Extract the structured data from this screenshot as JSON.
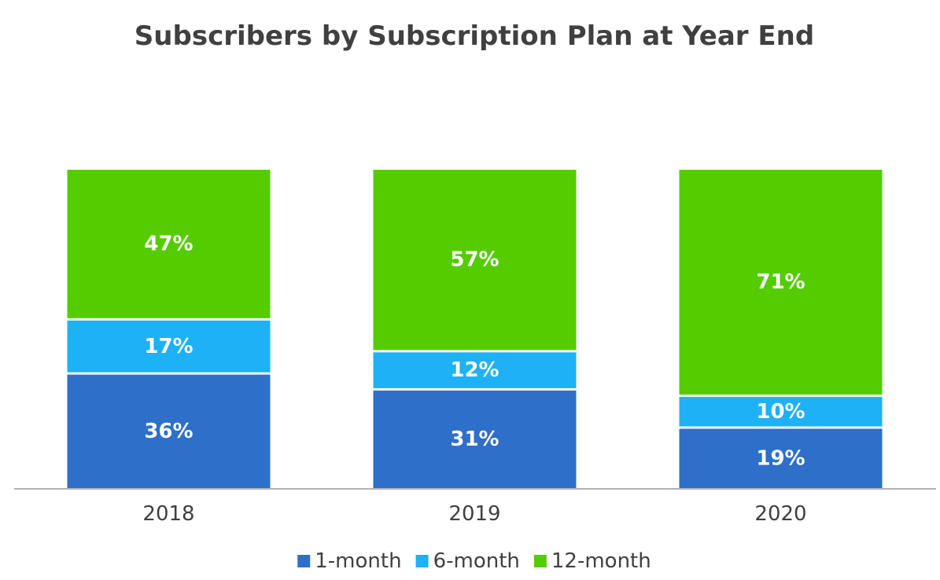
{
  "chart_data": {
    "type": "bar",
    "stacked": true,
    "normalized_percent": true,
    "title": "Subscribers by Subscription Plan at Year End",
    "xlabel": "",
    "ylabel": "",
    "ylim": [
      0,
      100
    ],
    "grid": false,
    "legend_position": "bottom",
    "categories": [
      "2018",
      "2019",
      "2020"
    ],
    "series": [
      {
        "name": "1-month",
        "color": "#2e6fca",
        "values": [
          36,
          31,
          19
        ],
        "labels": [
          "36%",
          "31%",
          "19%"
        ]
      },
      {
        "name": "6-month",
        "color": "#1eb1f5",
        "values": [
          17,
          12,
          10
        ],
        "labels": [
          "17%",
          "12%",
          "10%"
        ]
      },
      {
        "name": "12-month",
        "color": "#55cc00",
        "values": [
          47,
          57,
          71
        ],
        "labels": [
          "47%",
          "57%",
          "71%"
        ]
      }
    ],
    "axis_color": "#b3b3b3"
  }
}
